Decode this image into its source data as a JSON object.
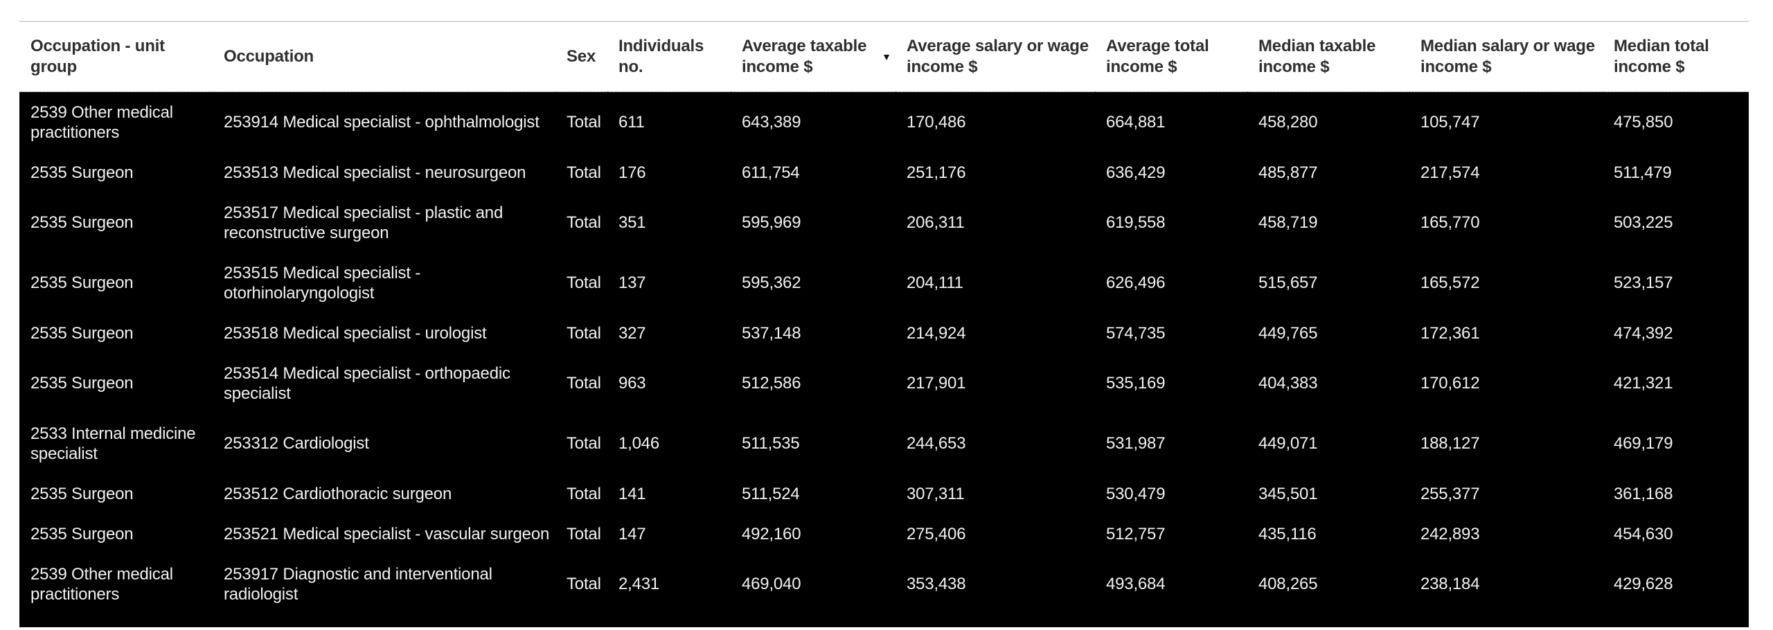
{
  "colors": {
    "page_bg": "#ffffff",
    "header_text": "#2f2f2f",
    "body_bg": "#000000",
    "body_text": "#f2f2f2",
    "top_rule": "#d8d8d8"
  },
  "table": {
    "sort_icon": "▼",
    "sorted_column": "avg_taxable_income",
    "sort_direction": "descending",
    "columns": [
      {
        "id": "occupation_unit_group",
        "label": "Occupation - unit\ngroup"
      },
      {
        "id": "occupation",
        "label": "Occupation"
      },
      {
        "id": "sex",
        "label": "Sex"
      },
      {
        "id": "individuals_no",
        "label": "Individuals\nno."
      },
      {
        "id": "avg_taxable_income",
        "label": "Average taxable\nincome $"
      },
      {
        "id": "avg_salary_wage_income",
        "label": "Average salary or wage\nincome $"
      },
      {
        "id": "avg_total_income",
        "label": "Average total\nincome $"
      },
      {
        "id": "median_taxable_income",
        "label": "Median taxable\nincome $"
      },
      {
        "id": "median_salary_wage_income",
        "label": "Median salary or wage\nincome $"
      },
      {
        "id": "median_total_income",
        "label": "Median total\nincome $"
      }
    ],
    "rows": [
      [
        "2539 Other medical\npractitioners",
        "253914 Medical specialist - ophthalmologist",
        "Total",
        "611",
        "643,389",
        "170,486",
        "664,881",
        "458,280",
        "105,747",
        "475,850"
      ],
      [
        "2535 Surgeon",
        "253513 Medical specialist - neurosurgeon",
        "Total",
        "176",
        "611,754",
        "251,176",
        "636,429",
        "485,877",
        "217,574",
        "511,479"
      ],
      [
        "2535 Surgeon",
        "253517 Medical specialist - plastic and\nreconstructive surgeon",
        "Total",
        "351",
        "595,969",
        "206,311",
        "619,558",
        "458,719",
        "165,770",
        "503,225"
      ],
      [
        "2535 Surgeon",
        "253515 Medical specialist -\notorhinolaryngologist",
        "Total",
        "137",
        "595,362",
        "204,111",
        "626,496",
        "515,657",
        "165,572",
        "523,157"
      ],
      [
        "2535 Surgeon",
        "253518 Medical specialist - urologist",
        "Total",
        "327",
        "537,148",
        "214,924",
        "574,735",
        "449,765",
        "172,361",
        "474,392"
      ],
      [
        "2535 Surgeon",
        "253514 Medical specialist - orthopaedic\nspecialist",
        "Total",
        "963",
        "512,586",
        "217,901",
        "535,169",
        "404,383",
        "170,612",
        "421,321"
      ],
      [
        "2533 Internal medicine\nspecialist",
        "253312 Cardiologist",
        "Total",
        "1,046",
        "511,535",
        "244,653",
        "531,987",
        "449,071",
        "188,127",
        "469,179"
      ],
      [
        "2535 Surgeon",
        "253512 Cardiothoracic surgeon",
        "Total",
        "141",
        "511,524",
        "307,311",
        "530,479",
        "345,501",
        "255,377",
        "361,168"
      ],
      [
        "2535 Surgeon",
        "253521 Medical specialist - vascular surgeon",
        "Total",
        "147",
        "492,160",
        "275,406",
        "512,757",
        "435,116",
        "242,893",
        "454,630"
      ],
      [
        "2539 Other medical\npractitioners",
        "253917 Diagnostic and interventional\nradiologist",
        "Total",
        "2,431",
        "469,040",
        "353,438",
        "493,684",
        "408,265",
        "238,184",
        "429,628"
      ]
    ]
  }
}
